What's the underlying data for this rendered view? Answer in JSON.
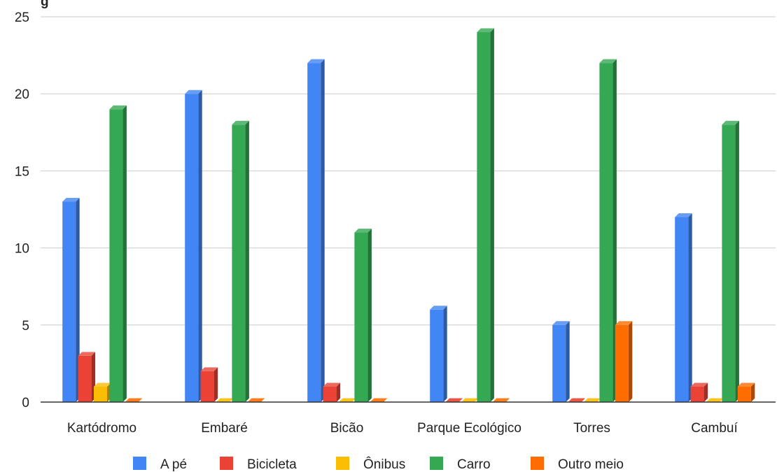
{
  "chart_data": {
    "type": "bar",
    "title": "",
    "caption_fragment": "g",
    "xlabel": "",
    "ylabel": "",
    "categories": [
      "Kartódromo",
      "Embaré",
      "Bicão",
      "Parque Ecológico",
      "Torres",
      "Cambuí"
    ],
    "series": [
      {
        "name": "A pé",
        "color": "#4285f4",
        "values": [
          13,
          20,
          22,
          6,
          5,
          12
        ]
      },
      {
        "name": "Bicicleta",
        "color": "#ea4335",
        "values": [
          3,
          2,
          1,
          0,
          0,
          1
        ]
      },
      {
        "name": "Ônibus",
        "color": "#fbbc04",
        "values": [
          1,
          0,
          0,
          0,
          0,
          0
        ]
      },
      {
        "name": "Carro",
        "color": "#34a853",
        "values": [
          19,
          18,
          11,
          24,
          22,
          18
        ]
      },
      {
        "name": "Outro meio",
        "color": "#ff6d01",
        "values": [
          0,
          0,
          0,
          0,
          5,
          1
        ]
      }
    ],
    "ylim": [
      0,
      25
    ],
    "yticks": [
      "0",
      "5",
      "10",
      "15",
      "20",
      "25"
    ],
    "grid": true,
    "legend_position": "bottom"
  }
}
